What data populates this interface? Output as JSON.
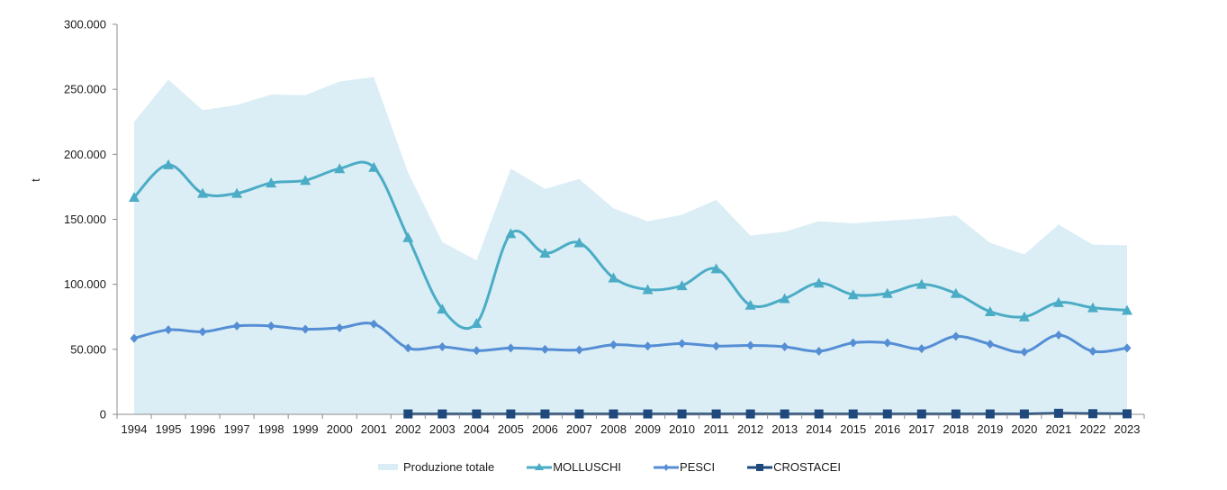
{
  "chart_data": {
    "type": "line",
    "title": "",
    "xlabel": "",
    "ylabel": "t",
    "ylim": [
      0,
      300000
    ],
    "yticks": [
      0,
      50000,
      100000,
      150000,
      200000,
      250000,
      300000
    ],
    "ytick_labels": [
      "0",
      "50.000",
      "100.000",
      "150.000",
      "200.000",
      "250.000",
      "300.000"
    ],
    "grid": false,
    "legend_position": "bottom",
    "categories": [
      "1994",
      "1995",
      "1996",
      "1997",
      "1998",
      "1999",
      "2000",
      "2001",
      "2002",
      "2003",
      "2004",
      "2005",
      "2006",
      "2007",
      "2008",
      "2009",
      "2010",
      "2011",
      "2012",
      "2013",
      "2014",
      "2015",
      "2016",
      "2017",
      "2018",
      "2019",
      "2020",
      "2021",
      "2022",
      "2023"
    ],
    "series": [
      {
        "name": "Produzione totale",
        "kind": "area",
        "color": "#dbeef5",
        "values": [
          225000,
          257500,
          234000,
          238000,
          246000,
          245500,
          256000,
          259500,
          186000,
          132500,
          118500,
          189000,
          173500,
          181000,
          158500,
          148500,
          153500,
          165000,
          137500,
          140500,
          148500,
          147000,
          149000,
          150500,
          153000,
          132000,
          123000,
          146000,
          130500,
          130000
        ]
      },
      {
        "name": "MOLLUSCHI",
        "kind": "line",
        "marker": "triangle",
        "color": "#4bacc6",
        "values": [
          167000,
          192000,
          170000,
          170000,
          178000,
          180000,
          189000,
          190000,
          136000,
          81000,
          70000,
          139000,
          124000,
          132000,
          105000,
          96000,
          99000,
          112000,
          84000,
          89000,
          101000,
          92000,
          93000,
          100000,
          93000,
          79000,
          75000,
          86000,
          82000,
          80000
        ]
      },
      {
        "name": "PESCI",
        "kind": "line",
        "marker": "diamond",
        "color": "#558ed5",
        "values": [
          58500,
          65000,
          63500,
          68000,
          68000,
          65500,
          66500,
          69500,
          51000,
          52000,
          49000,
          51000,
          50000,
          49500,
          53500,
          52500,
          54500,
          52500,
          53000,
          52000,
          48500,
          55000,
          55000,
          50500,
          60000,
          54000,
          48000,
          61000,
          48500,
          51000
        ]
      },
      {
        "name": "CROSTACEI",
        "kind": "line",
        "marker": "square",
        "color": "#1f497d",
        "values": [
          null,
          null,
          null,
          null,
          null,
          null,
          null,
          null,
          300,
          300,
          300,
          300,
          300,
          300,
          300,
          300,
          300,
          300,
          300,
          300,
          300,
          300,
          300,
          300,
          300,
          300,
          300,
          800,
          500,
          400
        ]
      }
    ]
  }
}
